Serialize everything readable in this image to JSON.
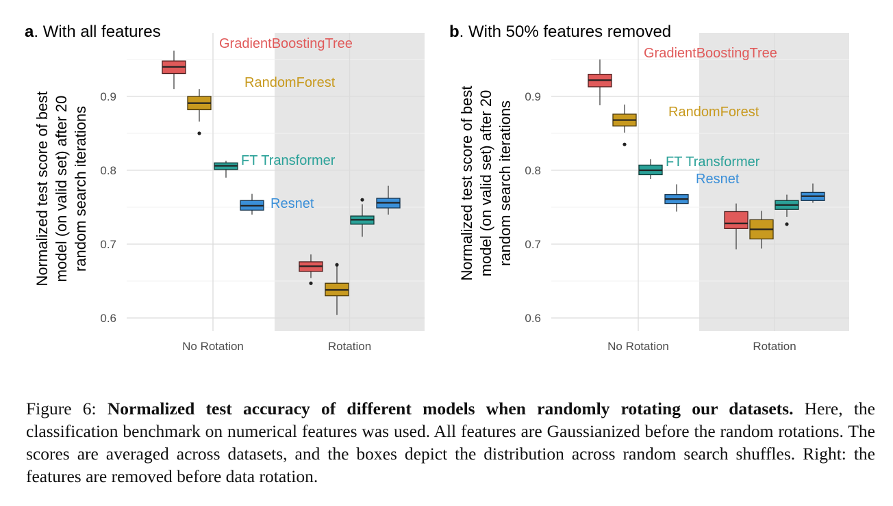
{
  "chart_data": [
    {
      "type": "boxplot",
      "panel_letter": "a",
      "title": ". With all features",
      "ylabel_lines": [
        "Normalized test score of best",
        "model (on valid set) after 20",
        "random search iterations"
      ],
      "ylim": [
        0.6,
        0.95
      ],
      "yticks": [
        0.6,
        0.7,
        0.8,
        0.9
      ],
      "ytick_labels": [
        "0.6",
        "0.7",
        "0.8",
        "0.9"
      ],
      "categories": [
        "No Rotation",
        "Rotation"
      ],
      "shaded_category": "Rotation",
      "grid": true,
      "series": [
        {
          "name": "GradientBoostingTree",
          "color": "#e05a5a",
          "boxes": [
            {
              "min": 0.91,
              "q1": 0.931,
              "median": 0.94,
              "q3": 0.948,
              "max": 0.962,
              "outliers": []
            },
            {
              "min": 0.654,
              "q1": 0.663,
              "median": 0.67,
              "q3": 0.676,
              "max": 0.686,
              "outliers": [
                0.647
              ]
            }
          ]
        },
        {
          "name": "RandomForest",
          "color": "#c89a1f",
          "boxes": [
            {
              "min": 0.866,
              "q1": 0.882,
              "median": 0.891,
              "q3": 0.9,
              "max": 0.91,
              "outliers": [
                0.85
              ]
            },
            {
              "min": 0.604,
              "q1": 0.63,
              "median": 0.638,
              "q3": 0.647,
              "max": 0.672,
              "outliers": [
                0.672
              ]
            }
          ]
        },
        {
          "name": "FT Transformer",
          "color": "#2aa198",
          "boxes": [
            {
              "min": 0.79,
              "q1": 0.801,
              "median": 0.806,
              "q3": 0.81,
              "max": 0.813,
              "outliers": []
            },
            {
              "min": 0.71,
              "q1": 0.727,
              "median": 0.733,
              "q3": 0.738,
              "max": 0.754,
              "outliers": [
                0.76
              ]
            }
          ]
        },
        {
          "name": "Resnet",
          "color": "#3a8fd8",
          "boxes": [
            {
              "min": 0.74,
              "q1": 0.746,
              "median": 0.752,
              "q3": 0.759,
              "max": 0.768,
              "outliers": []
            },
            {
              "min": 0.74,
              "q1": 0.749,
              "median": 0.756,
              "q3": 0.762,
              "max": 0.779,
              "outliers": []
            }
          ]
        }
      ]
    },
    {
      "type": "boxplot",
      "panel_letter": "b",
      "title": ". With 50% features removed",
      "ylabel_lines": [
        "Normalized test score of best",
        "model (on valid set) after 20",
        "random search iterations"
      ],
      "ylim": [
        0.6,
        0.95
      ],
      "yticks": [
        0.6,
        0.7,
        0.8,
        0.9
      ],
      "ytick_labels": [
        "0.6",
        "0.7",
        "0.8",
        "0.9"
      ],
      "categories": [
        "No Rotation",
        "Rotation"
      ],
      "shaded_category": "Rotation",
      "grid": true,
      "series": [
        {
          "name": "GradientBoostingTree",
          "color": "#e05a5a",
          "boxes": [
            {
              "min": 0.888,
              "q1": 0.913,
              "median": 0.922,
              "q3": 0.93,
              "max": 0.95,
              "outliers": []
            },
            {
              "min": 0.693,
              "q1": 0.721,
              "median": 0.728,
              "q3": 0.744,
              "max": 0.755,
              "outliers": []
            }
          ]
        },
        {
          "name": "RandomForest",
          "color": "#c89a1f",
          "boxes": [
            {
              "min": 0.851,
              "q1": 0.86,
              "median": 0.868,
              "q3": 0.876,
              "max": 0.889,
              "outliers": [
                0.835
              ]
            },
            {
              "min": 0.694,
              "q1": 0.707,
              "median": 0.72,
              "q3": 0.733,
              "max": 0.745,
              "outliers": []
            }
          ]
        },
        {
          "name": "FT Transformer",
          "color": "#2aa198",
          "boxes": [
            {
              "min": 0.788,
              "q1": 0.794,
              "median": 0.8,
              "q3": 0.807,
              "max": 0.815,
              "outliers": []
            },
            {
              "min": 0.737,
              "q1": 0.747,
              "median": 0.753,
              "q3": 0.759,
              "max": 0.767,
              "outliers": [
                0.727
              ]
            }
          ]
        },
        {
          "name": "Resnet",
          "color": "#3a8fd8",
          "boxes": [
            {
              "min": 0.744,
              "q1": 0.755,
              "median": 0.761,
              "q3": 0.767,
              "max": 0.781,
              "outliers": []
            },
            {
              "min": 0.756,
              "q1": 0.759,
              "median": 0.765,
              "q3": 0.77,
              "max": 0.782,
              "outliers": []
            }
          ]
        }
      ]
    }
  ],
  "caption": {
    "prefix": "Figure 6: ",
    "bold": "Normalized test accuracy of different models when randomly rotating our datasets.",
    "body": " Here, the classification benchmark on numerical features was used. All features are Gaussianized before the random rotations.  The scores are averaged across datasets, and the boxes depict the distribution across random search shuffles. Right: the features are removed before data rotation."
  }
}
